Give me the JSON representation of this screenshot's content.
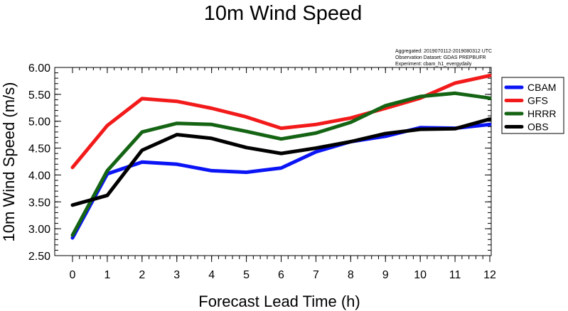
{
  "chart_data": {
    "type": "line",
    "title": "10m Wind Speed",
    "xlabel": "Forecast Lead Time (h)",
    "ylabel": "10m Wind Speed (m/s)",
    "x": [
      0,
      1,
      2,
      3,
      4,
      5,
      6,
      7,
      8,
      9,
      10,
      11,
      12
    ],
    "xlim": [
      0,
      12
    ],
    "ylim": [
      2.5,
      6.0
    ],
    "y_ticks": [
      "2.50",
      "3.00",
      "3.50",
      "4.00",
      "4.50",
      "5.00",
      "5.50",
      "6.00"
    ],
    "x_ticks": [
      "0",
      "1",
      "2",
      "3",
      "4",
      "5",
      "6",
      "7",
      "8",
      "9",
      "10",
      "11",
      "12"
    ],
    "legend_position": "right",
    "annotations": [
      "Aggregated: 2019070112-2019080312 UTC",
      "Observation Dataset: GDAS PREPBUFR",
      "Experiment: cbam_h1_evergydaily"
    ],
    "series": [
      {
        "name": "CBAM",
        "color": "#0a14f5",
        "values": [
          2.83,
          4.02,
          4.24,
          4.2,
          4.08,
          4.05,
          4.13,
          4.43,
          4.62,
          4.72,
          4.88,
          4.87,
          4.94
        ]
      },
      {
        "name": "GFS",
        "color": "#f21a1a",
        "values": [
          4.14,
          4.92,
          5.42,
          5.37,
          5.24,
          5.08,
          4.87,
          4.94,
          5.06,
          5.24,
          5.43,
          5.71,
          5.85
        ]
      },
      {
        "name": "HRRR",
        "color": "#146414",
        "values": [
          2.88,
          4.08,
          4.8,
          4.96,
          4.94,
          4.81,
          4.67,
          4.78,
          4.98,
          5.29,
          5.46,
          5.52,
          5.43
        ]
      },
      {
        "name": "OBS",
        "color": "#000000",
        "values": [
          3.44,
          3.62,
          4.46,
          4.75,
          4.68,
          4.51,
          4.4,
          4.5,
          4.62,
          4.77,
          4.85,
          4.86,
          5.04
        ]
      }
    ]
  }
}
